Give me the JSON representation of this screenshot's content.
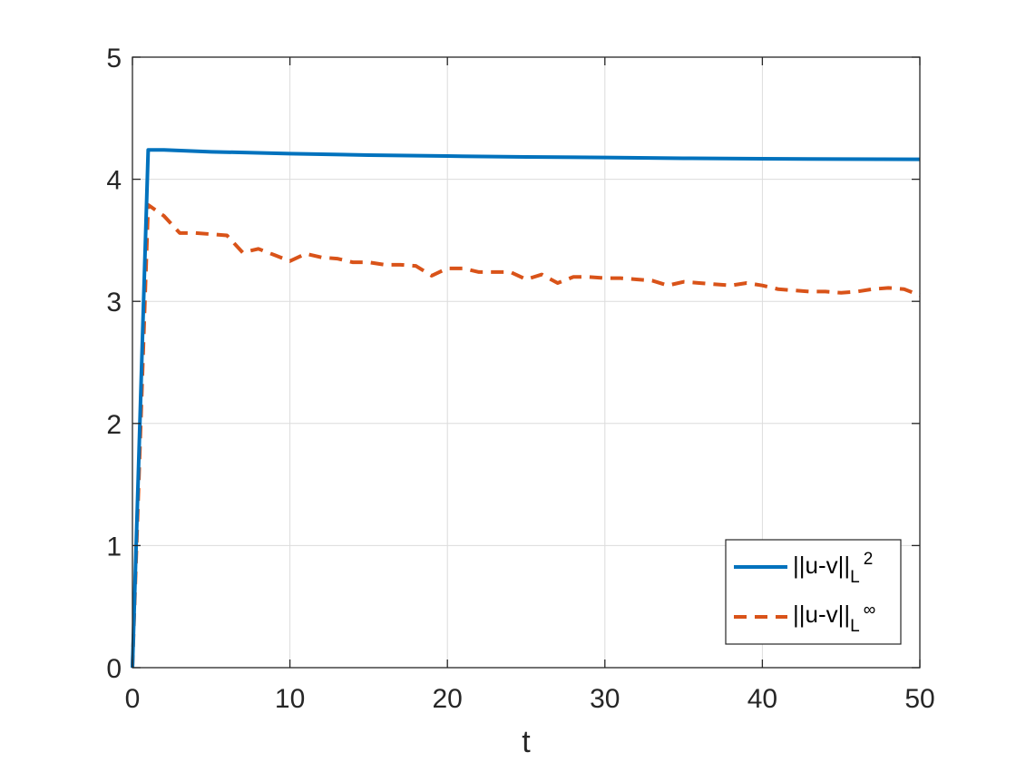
{
  "chart_data": {
    "type": "line",
    "title": "",
    "xlabel": "t",
    "ylabel": "",
    "xlim": [
      0,
      50
    ],
    "ylim": [
      0,
      5
    ],
    "xticks": [
      0,
      10,
      20,
      30,
      40,
      50
    ],
    "yticks": [
      0,
      1,
      2,
      3,
      4,
      5
    ],
    "grid": true,
    "legend_position": "bottom-right",
    "series": [
      {
        "name": "||u-v||",
        "subscript": "L",
        "superscript": "2",
        "color": "#0072BD",
        "style": "solid",
        "x": [
          0,
          1,
          2,
          5,
          10,
          15,
          20,
          25,
          30,
          35,
          40,
          45,
          50
        ],
        "y": [
          0,
          4.24,
          4.24,
          4.225,
          4.21,
          4.198,
          4.19,
          4.183,
          4.178,
          4.172,
          4.168,
          4.165,
          4.163
        ]
      },
      {
        "name": "||u-v||",
        "subscript": "L",
        "superscript": "∞",
        "color": "#D95319",
        "style": "dashed",
        "x": [
          0,
          1,
          2,
          3,
          4,
          5,
          6,
          7,
          8,
          9,
          10,
          11,
          12,
          13,
          14,
          15,
          16,
          17,
          18,
          19,
          20,
          21,
          22,
          23,
          24,
          25,
          26,
          27,
          28,
          29,
          30,
          31,
          32,
          33,
          34,
          35,
          36,
          37,
          38,
          39,
          40,
          41,
          42,
          43,
          44,
          45,
          46,
          47,
          48,
          49,
          50
        ],
        "y": [
          0,
          3.79,
          3.7,
          3.56,
          3.56,
          3.55,
          3.54,
          3.4,
          3.43,
          3.38,
          3.33,
          3.39,
          3.36,
          3.35,
          3.32,
          3.32,
          3.3,
          3.3,
          3.29,
          3.21,
          3.27,
          3.27,
          3.24,
          3.24,
          3.24,
          3.18,
          3.22,
          3.15,
          3.2,
          3.2,
          3.19,
          3.19,
          3.18,
          3.17,
          3.13,
          3.16,
          3.15,
          3.14,
          3.13,
          3.15,
          3.13,
          3.1,
          3.09,
          3.08,
          3.08,
          3.07,
          3.08,
          3.1,
          3.11,
          3.1,
          3.05
        ]
      }
    ]
  }
}
